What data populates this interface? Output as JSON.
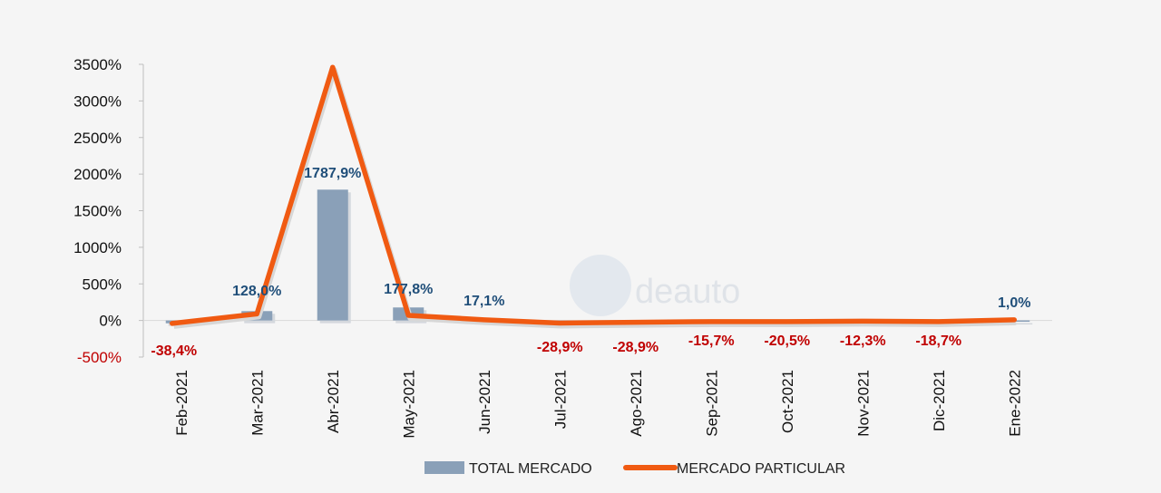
{
  "chart_data": {
    "type": "bar+line",
    "categories": [
      "Feb-2021",
      "Mar-2021",
      "Abr-2021",
      "May-2021",
      "Jun-2021",
      "Jul-2021",
      "Ago-2021",
      "Sep-2021",
      "Oct-2021",
      "Nov-2021",
      "Dic-2021",
      "Ene-2022"
    ],
    "series": [
      {
        "name": "TOTAL MERCADO",
        "kind": "bar",
        "color": "#8aa0b8",
        "values": [
          -38.4,
          128.0,
          1787.9,
          177.8,
          17.1,
          -28.9,
          -28.9,
          -15.7,
          -20.5,
          -12.3,
          -18.7,
          1.0
        ]
      },
      {
        "name": "MERCADO PARTICULAR",
        "kind": "line",
        "color": "#f05a12",
        "values": [
          -40,
          90,
          3460,
          70,
          10,
          -35,
          -25,
          -15,
          -15,
          -10,
          -15,
          10
        ]
      }
    ],
    "data_labels": [
      "-38,4%",
      "128,0%",
      "1787,9%",
      "177,8%",
      "17,1%",
      "-28,9%",
      "-28,9%",
      "-15,7%",
      "-20,5%",
      "-12,3%",
      "-18,7%",
      "1,0%"
    ],
    "y_ticks": [
      "3500%",
      "3000%",
      "2500%",
      "2000%",
      "1500%",
      "1000%",
      "500%",
      "0%",
      "-500%"
    ],
    "ylim": [
      -500,
      3500
    ],
    "title": "",
    "xlabel": "",
    "ylabel": "",
    "legend_position": "bottom",
    "positive_label_color": "#1f4e79",
    "negative_label_color": "#c00000"
  },
  "watermark": {
    "text": "deauto"
  }
}
